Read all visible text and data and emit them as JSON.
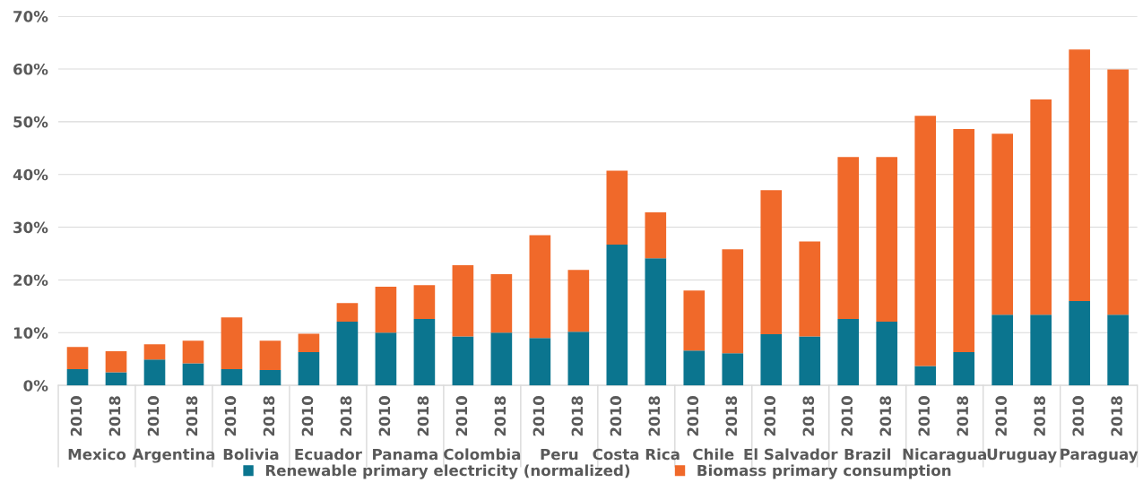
{
  "chart_data": {
    "type": "bar",
    "stacked": true,
    "categories": [
      "2010",
      "2018",
      "2010",
      "2018",
      "2010",
      "2018",
      "2010",
      "2018",
      "2010",
      "2018",
      "2010",
      "2018",
      "2010",
      "2018",
      "2010",
      "2018",
      "2010",
      "2018",
      "2010",
      "2018",
      "2010",
      "2018",
      "2010",
      "2018",
      "2010",
      "2018",
      "2010",
      "2018"
    ],
    "series": [
      {
        "name": "Renewable primary electricity (normalized)",
        "color": "#0b758f",
        "values": [
          3.1,
          2.5,
          4.9,
          4.2,
          3.1,
          2.9,
          6.3,
          12.1,
          10.0,
          12.6,
          9.3,
          10.0,
          9.0,
          10.2,
          26.7,
          24.1,
          6.6,
          6.1,
          9.7,
          9.3,
          12.6,
          12.1,
          3.7,
          6.3,
          13.4,
          13.4,
          16.0,
          13.4
        ]
      },
      {
        "name": "Biomass primary consumption",
        "color": "#f0692a",
        "values": [
          4.2,
          4.0,
          2.9,
          4.3,
          9.8,
          5.6,
          3.5,
          3.5,
          8.7,
          6.4,
          13.5,
          11.1,
          19.5,
          11.7,
          14.0,
          8.7,
          11.4,
          19.7,
          27.3,
          18.0,
          30.7,
          31.2,
          47.4,
          42.3,
          34.3,
          40.8,
          47.7,
          46.5
        ]
      }
    ],
    "annotations": [
      "Mexico",
      "Argentina",
      "Bolivia",
      "Ecuador",
      "Panama",
      "Colombia",
      "Peru",
      "Costa Rica",
      "Chile",
      "El Salvador",
      "Brazil",
      "Nicaragua",
      "Uruguay",
      "Paraguay"
    ],
    "ylim": [
      0,
      70
    ],
    "yticks": [
      {
        "value": 0,
        "label": "0%"
      },
      {
        "value": 10,
        "label": "10%"
      },
      {
        "value": 20,
        "label": "20%"
      },
      {
        "value": 30,
        "label": "30%"
      },
      {
        "value": 40,
        "label": "40%"
      },
      {
        "value": 50,
        "label": "50%"
      },
      {
        "value": 60,
        "label": "60%"
      },
      {
        "value": 70,
        "label": "70%"
      }
    ],
    "grid": "y",
    "legend": "bottom"
  }
}
